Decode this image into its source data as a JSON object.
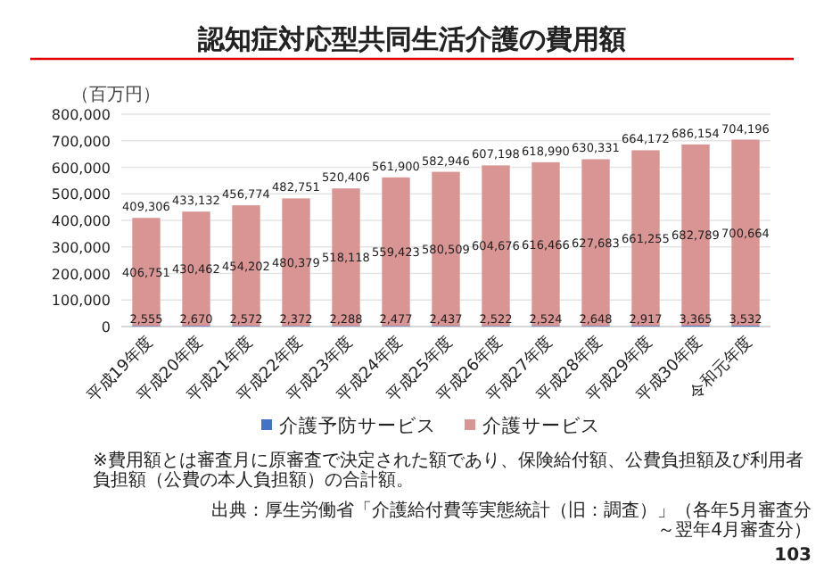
{
  "chart_data": {
    "type": "bar",
    "stacked": true,
    "title": "認知症対応型共同生活介護の費用額",
    "ylabel": "（百万円）",
    "categories": [
      "平成19年度",
      "平成20年度",
      "平成21年度",
      "平成22年度",
      "平成23年度",
      "平成24年度",
      "平成25年度",
      "平成26年度",
      "平成27年度",
      "平成28年度",
      "平成29年度",
      "平成30年度",
      "令和元年度"
    ],
    "series": [
      {
        "name": "介護予防サービス",
        "color": "#4472c4",
        "values": [
          2555,
          2670,
          2572,
          2372,
          2288,
          2477,
          2437,
          2522,
          2524,
          2648,
          2917,
          3365,
          3532
        ],
        "value_labels": [
          "2,555",
          "2,670",
          "2,572",
          "2,372",
          "2,288",
          "2,477",
          "2,437",
          "2,522",
          "2,524",
          "2,648",
          "2,917",
          "3,365",
          "3,532"
        ]
      },
      {
        "name": "介護サービス",
        "color": "#d99594",
        "values": [
          406751,
          430462,
          454202,
          480379,
          518118,
          559423,
          580509,
          604676,
          616466,
          627683,
          661255,
          682789,
          700664
        ],
        "value_labels": [
          "406,751",
          "430,462",
          "454,202",
          "480,379",
          "518,118",
          "559,423",
          "580,509",
          "604,676",
          "616,466",
          "627,683",
          "661,255",
          "682,789",
          "700,664"
        ]
      }
    ],
    "totals": [
      "409,306",
      "433,132",
      "456,774",
      "482,751",
      "520,406",
      "561,900",
      "582,946",
      "607,198",
      "618,990",
      "630,331",
      "664,172",
      "686,154",
      "704,196"
    ],
    "ylim": [
      0,
      800000
    ],
    "yticks": [
      0,
      {
        "value": 100000,
        "label": "100,000"
      },
      {
        "value": 200000,
        "label": "200,000"
      },
      {
        "value": 300000,
        "label": "300,000"
      },
      {
        "value": 400000,
        "label": "400,000"
      },
      {
        "value": 500000,
        "label": "500,000"
      },
      {
        "value": 600000,
        "label": "600,000"
      },
      {
        "value": 700000,
        "label": "700,000"
      },
      {
        "value": 800000,
        "label": "800,000"
      }
    ],
    "grid": "y",
    "legend": "bottom",
    "annotations": [
      "※費用額とは審査月に原審査で決定された額であり、保険給付額、公費負担額及び利用者負担額（公費の本人負担額）の合計額。",
      "出典：厚生労働省「介護給付費等実態統計（旧：調査）」（各年5月審査分～翌年4月審査分）",
      "103"
    ]
  }
}
